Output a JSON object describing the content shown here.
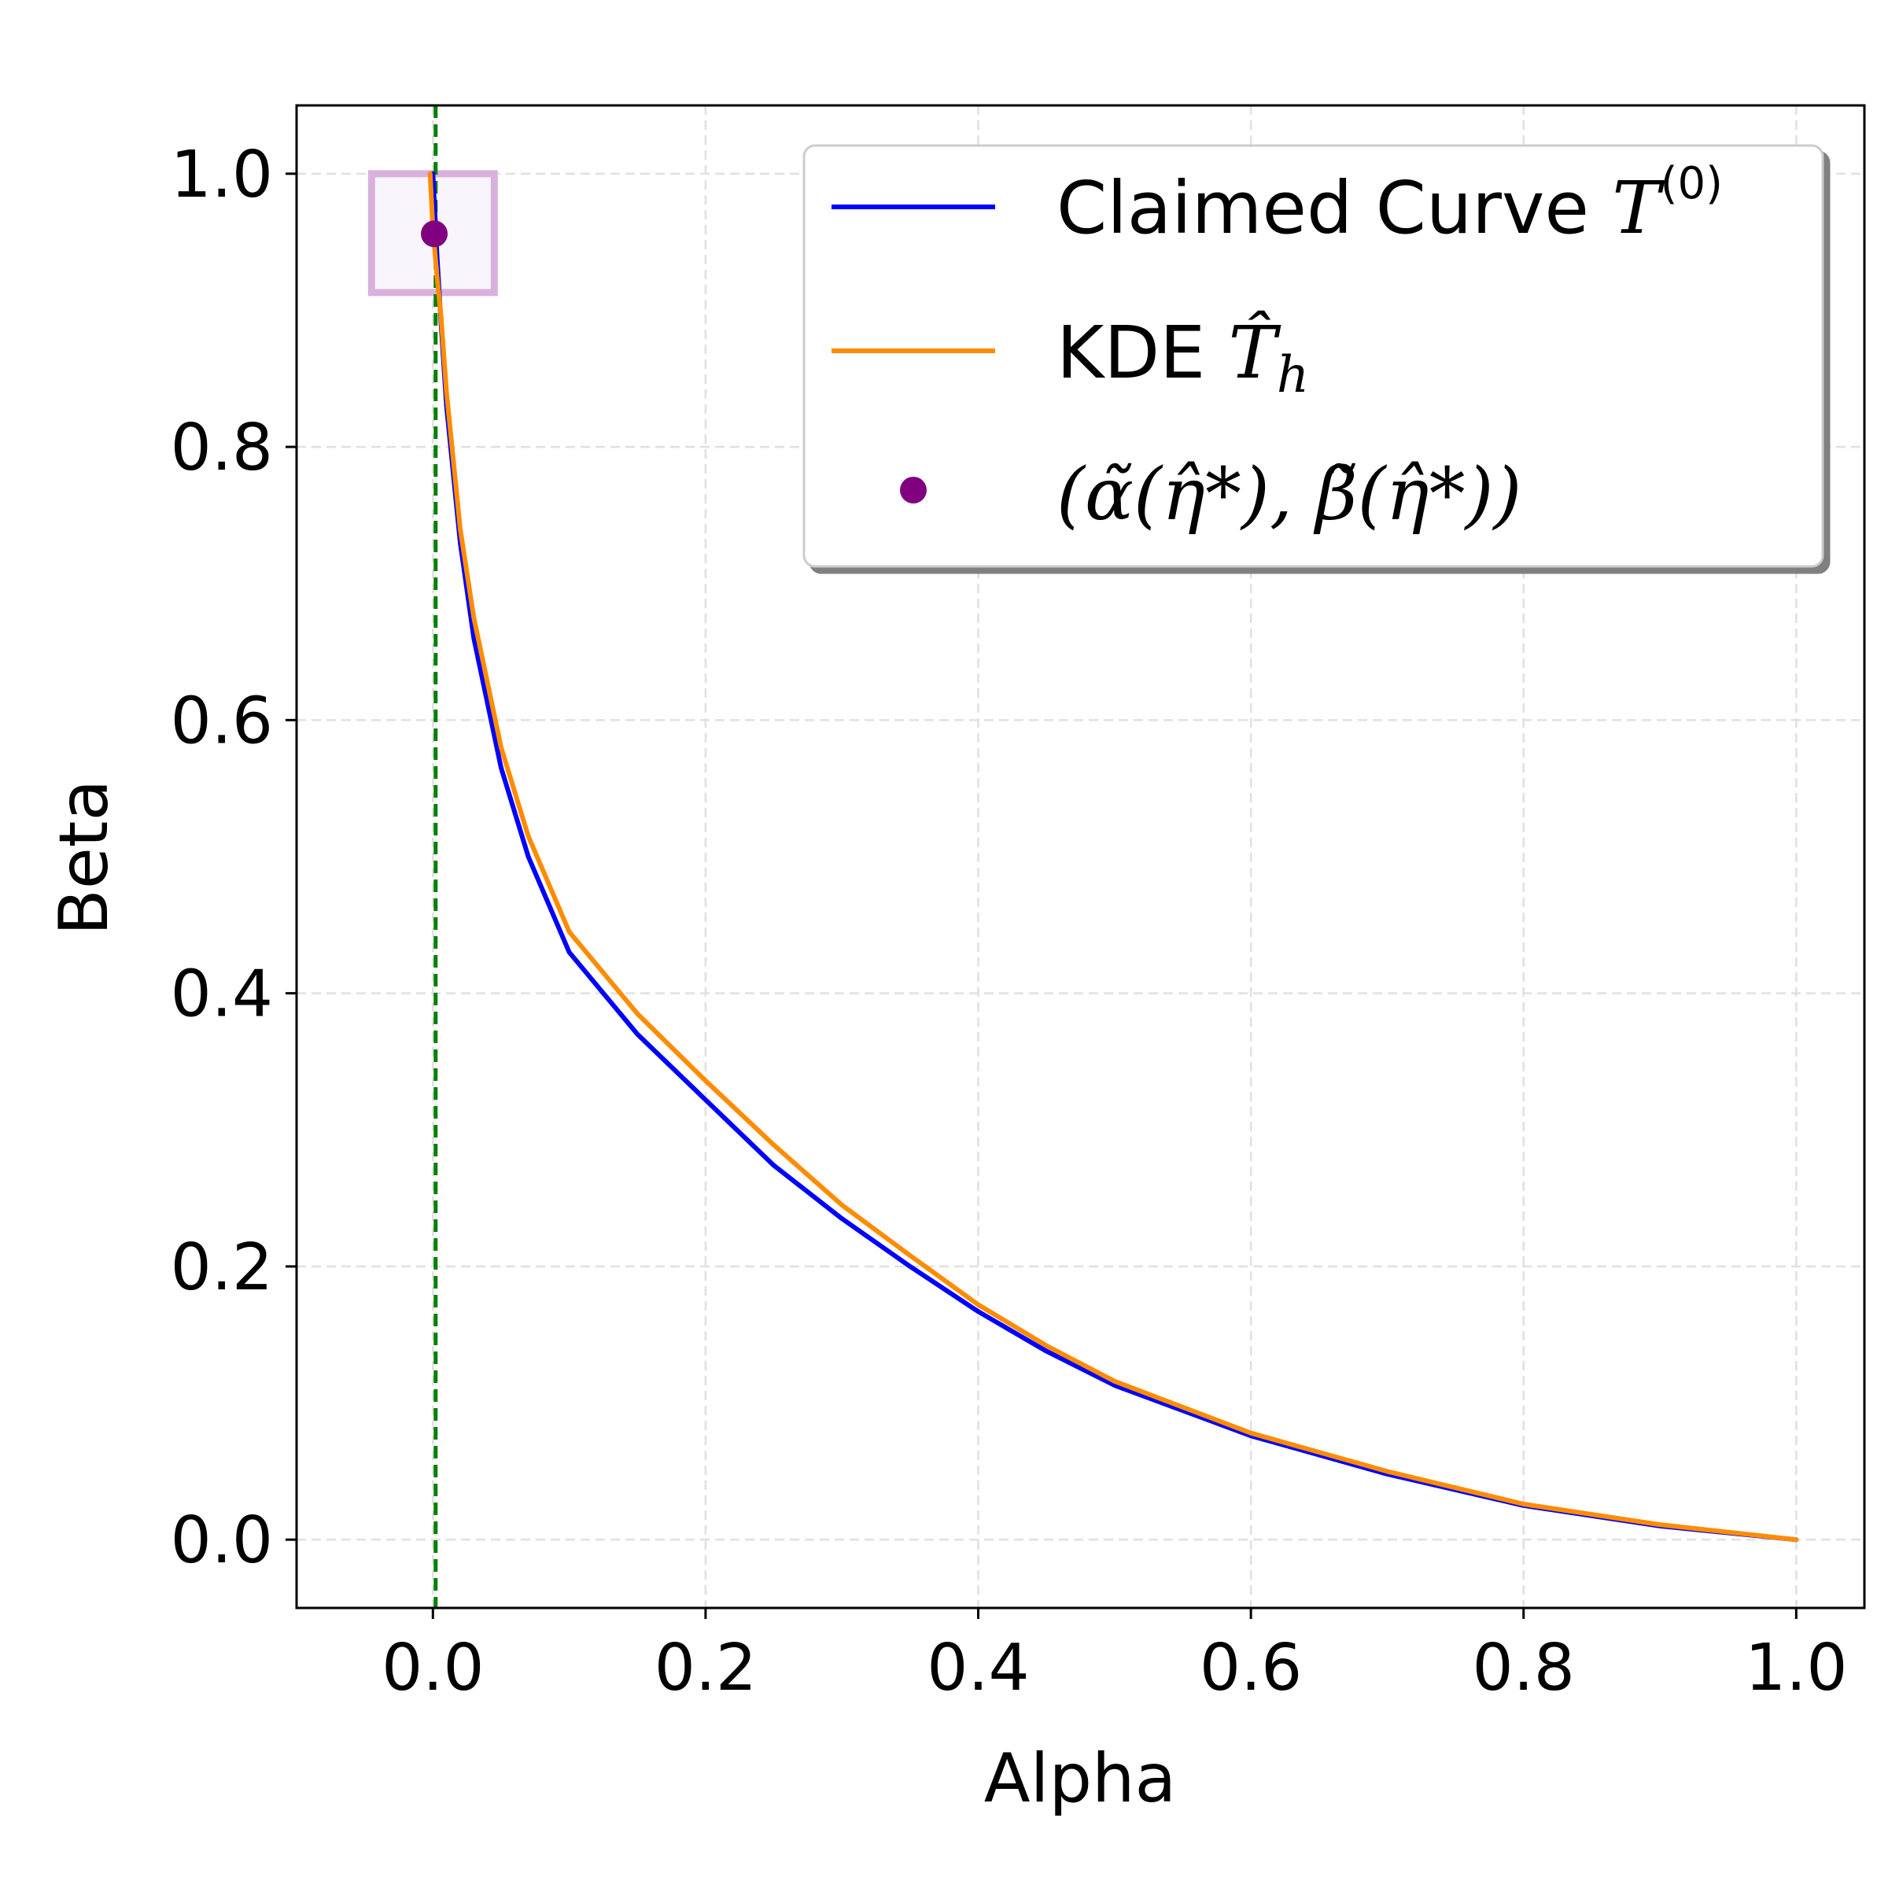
{
  "chart_data": {
    "type": "line",
    "xlabel": "Alpha",
    "ylabel": "Beta",
    "xlim": [
      -0.1,
      1.05
    ],
    "ylim": [
      -0.05,
      1.05
    ],
    "x_ticks": [
      0.0,
      0.2,
      0.4,
      0.6,
      0.8,
      1.0
    ],
    "y_ticks": [
      0.0,
      0.2,
      0.4,
      0.6,
      0.8,
      1.0
    ],
    "x_tick_labels": [
      "0.0",
      "0.2",
      "0.4",
      "0.6",
      "0.8",
      "1.0"
    ],
    "y_tick_labels": [
      "0.0",
      "0.2",
      "0.4",
      "0.6",
      "0.8",
      "1.0"
    ],
    "grid": true,
    "legend_position": "top-right",
    "series": [
      {
        "name": "Claimed Curve T^(0)",
        "legend_text": "Claimed Curve ",
        "legend_math": "T",
        "legend_sup": "(0)",
        "color": "#0000ff",
        "x": [
          0.0,
          0.003,
          0.006,
          0.01,
          0.02,
          0.03,
          0.05,
          0.07,
          0.1,
          0.15,
          0.2,
          0.25,
          0.3,
          0.35,
          0.4,
          0.45,
          0.5,
          0.6,
          0.7,
          0.8,
          0.9,
          1.0
        ],
        "y": [
          1.0,
          0.94,
          0.89,
          0.83,
          0.73,
          0.66,
          0.565,
          0.5,
          0.43,
          0.37,
          0.322,
          0.274,
          0.235,
          0.2,
          0.167,
          0.138,
          0.113,
          0.076,
          0.048,
          0.025,
          0.01,
          0.0
        ]
      },
      {
        "name": "KDE T̂_h",
        "legend_text": "KDE ",
        "legend_math": "T̂",
        "legend_sub": "h",
        "color": "#ff8c00",
        "x": [
          -0.002,
          0.0,
          0.003,
          0.006,
          0.01,
          0.02,
          0.03,
          0.05,
          0.07,
          0.1,
          0.15,
          0.2,
          0.25,
          0.3,
          0.35,
          0.4,
          0.45,
          0.5,
          0.6,
          0.7,
          0.8,
          0.9,
          1.0
        ],
        "y": [
          1.0,
          0.96,
          0.925,
          0.895,
          0.84,
          0.74,
          0.675,
          0.58,
          0.515,
          0.445,
          0.385,
          0.336,
          0.289,
          0.245,
          0.208,
          0.172,
          0.142,
          0.116,
          0.078,
          0.05,
          0.026,
          0.011,
          0.0
        ]
      }
    ],
    "points": [
      {
        "name": "(α̃(η̂*), β̃(η̂*))",
        "legend_text": "(α̃(η̂*), β̃(η̂*))",
        "color": "#800080",
        "x": 0.001,
        "y": 0.956
      }
    ],
    "reference_line": {
      "orientation": "vertical",
      "x": 0.002,
      "color": "#008000",
      "style": "dashed"
    },
    "highlight_box": {
      "x_range": [
        -0.045,
        0.045
      ],
      "y_range": [
        0.913,
        1.0
      ],
      "edge_color": "#d8b2dc",
      "fill_color": "#f8f5fc"
    }
  }
}
